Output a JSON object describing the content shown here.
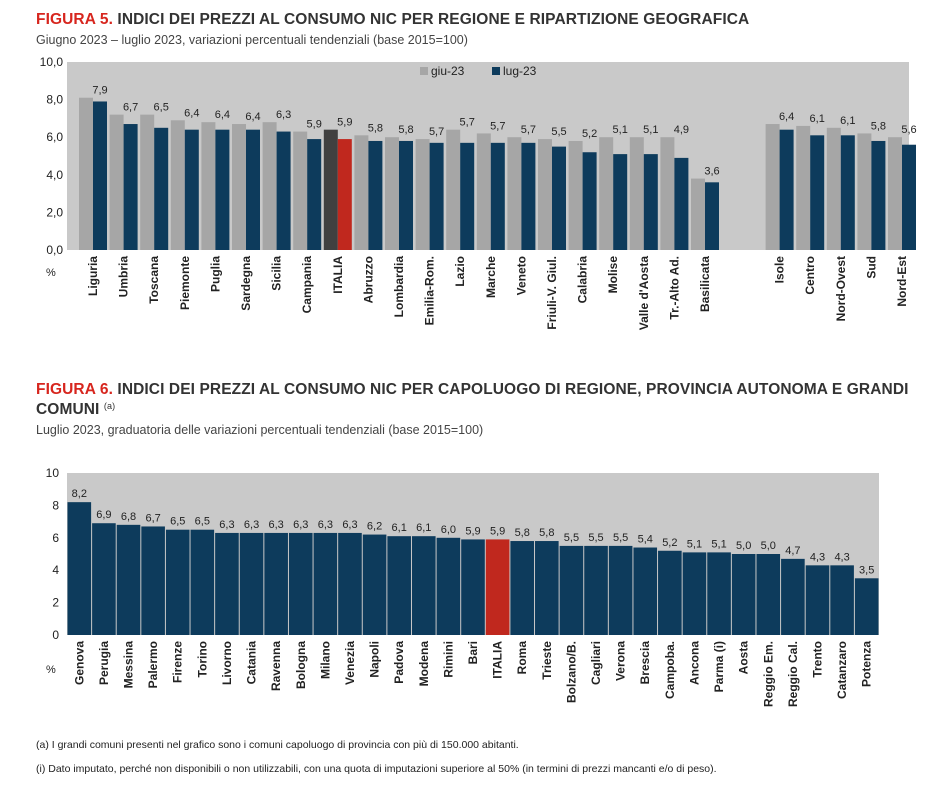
{
  "figure5": {
    "number": "FIGURA 5.",
    "title": "INDICI DEI PREZZI AL CONSUMO NIC PER REGIONE E RIPARTIZIONE GEOGRAFICA",
    "subtitle": "Giugno 2023 – luglio 2023, variazioni percentuali tendenziali (base 2015=100)"
  },
  "figure6": {
    "number": "FIGURA 6.",
    "title_line1": "INDICI DEI PREZZI AL CONSUMO NIC PER CAPOLUOGO DI REGIONE, PROVINCIA AUTONOMA E GRANDI",
    "title_line2": "COMUNI",
    "title_note": "(a)",
    "subtitle": "Luglio 2023, graduatoria delle variazioni percentuali tendenziali (base 2015=100)"
  },
  "notes": {
    "a": "(a)  I grandi comuni presenti nel grafico sono i comuni capoluogo di provincia con più di 150.000 abitanti.",
    "i": "(i)  Dato imputato, perché non disponibili o non utilizzabili, con una quota di imputazioni superiore al 50% (in termini di prezzi mancanti e/o di peso)."
  },
  "colors": {
    "jun": "#a6a6a6",
    "jul": "#0d3b5c",
    "italia_jun": "#404040",
    "italia_jul": "#c0281e",
    "plot_bg": "#c9c9c9",
    "title_red": "#d7261e"
  },
  "chart_data": [
    {
      "type": "bar",
      "unit_label": "%",
      "ylim": [
        0,
        10
      ],
      "yticks": [
        "0,0",
        "2,0",
        "4,0",
        "6,0",
        "8,0",
        "10,0"
      ],
      "grid": false,
      "legend_position": "top-center",
      "categories": [
        "Liguria",
        "Umbria",
        "Toscana",
        "Piemonte",
        "Puglia",
        "Sardegna",
        "Sicilia",
        "Campania",
        "ITALIA",
        "Abruzzo",
        "Lombardia",
        "Emilia-Rom.",
        "Lazio",
        "Marche",
        "Veneto",
        "Friuli-V. Giul.",
        "Calabria",
        "Molise",
        "Valle d'Aosta",
        "Tr.-Alto Ad.",
        "Basilicata",
        "Isole",
        "Centro",
        "Nord-Ovest",
        "Sud",
        "Nord-Est"
      ],
      "series": [
        {
          "name": "giu-23",
          "values": [
            8.1,
            7.2,
            7.2,
            6.9,
            6.8,
            6.7,
            6.8,
            6.3,
            6.4,
            6.1,
            6.0,
            5.9,
            6.4,
            6.2,
            6.0,
            5.9,
            5.8,
            6.0,
            6.0,
            6.0,
            3.8,
            6.7,
            6.6,
            6.5,
            6.2,
            6.0
          ]
        },
        {
          "name": "lug-23",
          "values": [
            7.9,
            6.7,
            6.5,
            6.4,
            6.4,
            6.4,
            6.3,
            5.9,
            5.9,
            5.8,
            5.8,
            5.7,
            5.7,
            5.7,
            5.7,
            5.5,
            5.2,
            5.1,
            5.1,
            4.9,
            3.6,
            6.4,
            6.1,
            6.1,
            5.8,
            5.6
          ]
        }
      ],
      "value_labels": [
        "7,9",
        "6,7",
        "6,5",
        "6,4",
        "6,4",
        "6,4",
        "6,3",
        "5,9",
        "5,9",
        "5,8",
        "5,8",
        "5,7",
        "5,7",
        "5,7",
        "5,7",
        "5,5",
        "5,2",
        "5,1",
        "5,1",
        "4,9",
        "3,6",
        "6,4",
        "6,1",
        "6,1",
        "5,8",
        "5,6"
      ],
      "highlight": "ITALIA"
    },
    {
      "type": "bar",
      "unit_label": "%",
      "ylim": [
        0,
        10
      ],
      "yticks": [
        "0",
        "2",
        "4",
        "6",
        "8",
        "10"
      ],
      "grid": false,
      "categories": [
        "Genova",
        "Perugia",
        "Messina",
        "Palermo",
        "Firenze",
        "Torino",
        "Livorno",
        "Catania",
        "Ravenna",
        "Bologna",
        "Milano",
        "Venezia",
        "Napoli",
        "Padova",
        "Modena",
        "Rimini",
        "Bari",
        "ITALIA",
        "Roma",
        "Trieste",
        "Bolzano/B.",
        "Cagliari",
        "Verona",
        "Brescia",
        "Campoba.",
        "Ancona",
        "Parma (i)",
        "Aosta",
        "Reggio Em.",
        "Reggio Cal.",
        "Trento",
        "Catanzaro",
        "Potenza"
      ],
      "values": [
        8.2,
        6.9,
        6.8,
        6.7,
        6.5,
        6.5,
        6.3,
        6.3,
        6.3,
        6.3,
        6.3,
        6.3,
        6.2,
        6.1,
        6.1,
        6.0,
        5.9,
        5.9,
        5.8,
        5.8,
        5.5,
        5.5,
        5.5,
        5.4,
        5.2,
        5.1,
        5.1,
        5.0,
        5.0,
        4.7,
        4.3,
        4.3,
        3.5
      ],
      "value_labels": [
        "8,2",
        "6,9",
        "6,8",
        "6,7",
        "6,5",
        "6,5",
        "6,3",
        "6,3",
        "6,3",
        "6,3",
        "6,3",
        "6,3",
        "6,2",
        "6,1",
        "6,1",
        "6,0",
        "5,9",
        "5,9",
        "5,8",
        "5,8",
        "5,5",
        "5,5",
        "5,5",
        "5,4",
        "5,2",
        "5,1",
        "5,1",
        "5,0",
        "5,0",
        "4,7",
        "4,3",
        "4,3",
        "3,5"
      ],
      "highlight": "ITALIA"
    }
  ]
}
